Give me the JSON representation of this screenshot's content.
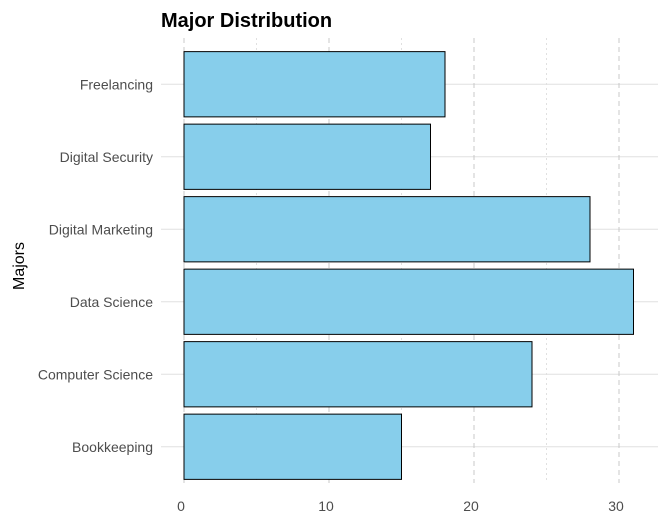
{
  "chart_data": {
    "type": "bar",
    "orientation": "horizontal",
    "title": "Major Distribution",
    "xlabel": "",
    "ylabel": "Majors",
    "categories": [
      "Bookkeeping",
      "Computer Science",
      "Data Science",
      "Digital Marketing",
      "Digital Security",
      "Freelancing"
    ],
    "values": [
      15,
      24,
      31,
      28,
      17,
      18
    ],
    "xlim": [
      0,
      32.5
    ],
    "xticks": [
      0,
      10,
      20,
      30
    ],
    "grid": true,
    "legend": "none",
    "colors": {
      "bar_fill": "#87ceeb",
      "bar_stroke": "#000000",
      "major_grid": "#c8c8c8",
      "minor_grid": "#e0e0e0"
    }
  }
}
